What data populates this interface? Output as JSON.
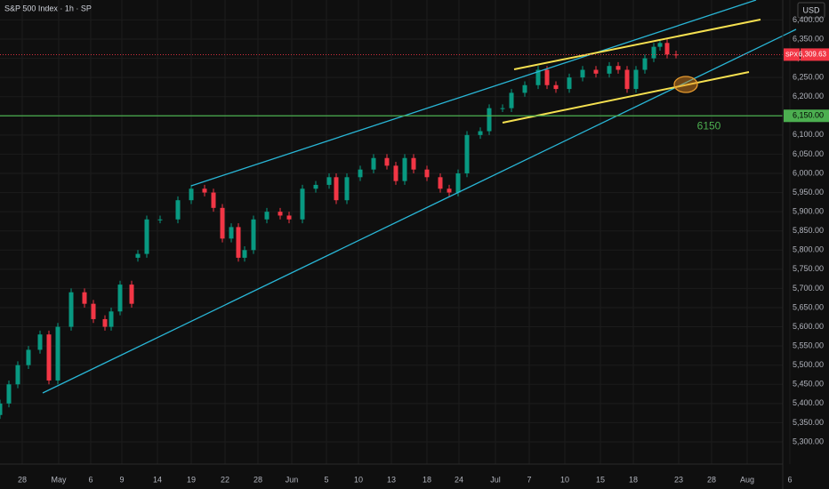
{
  "chart_data": {
    "type": "candlestick",
    "title": "S&P 500 Index · 1h · SP",
    "currency": "USD",
    "up_color": "#089981",
    "down_color": "#f23645",
    "x": [
      0,
      10,
      20,
      32,
      45,
      55,
      65,
      80,
      95,
      105,
      118,
      125,
      135,
      148,
      155,
      165,
      180,
      200,
      215,
      230,
      240,
      250,
      260,
      268,
      275,
      285,
      300,
      315,
      325,
      340,
      355,
      370,
      378,
      390,
      405,
      420,
      435,
      445,
      455,
      465,
      480,
      495,
      505,
      515,
      525,
      540,
      550,
      565,
      575,
      590,
      605,
      615,
      625,
      640,
      655,
      670,
      685,
      695,
      705,
      715,
      725,
      735,
      742,
      750,
      760
    ],
    "open": [
      5370,
      5400,
      5450,
      5500,
      5540,
      5580,
      5460,
      5600,
      5690,
      5660,
      5620,
      5600,
      5640,
      5710,
      5780,
      5790,
      5880,
      5880,
      5930,
      5960,
      5950,
      5910,
      5830,
      5860,
      5780,
      5800,
      5880,
      5900,
      5890,
      5880,
      5960,
      5970,
      5990,
      5930,
      5990,
      6010,
      6040,
      6020,
      5980,
      6040,
      6010,
      5990,
      5960,
      5950,
      6000,
      6100,
      6110,
      6170,
      6170,
      6210,
      6230,
      6270,
      6230,
      6220,
      6250,
      6270,
      6260,
      6280,
      6270,
      6220,
      6270,
      6300,
      6330,
      6340,
      6310
    ],
    "high": [
      5410,
      5460,
      5510,
      5550,
      5590,
      5590,
      5610,
      5700,
      5700,
      5670,
      5630,
      5650,
      5720,
      5720,
      5800,
      5890,
      5890,
      5940,
      5970,
      5970,
      5960,
      5920,
      5870,
      5870,
      5810,
      5890,
      5910,
      5910,
      5900,
      5970,
      5980,
      6000,
      6000,
      6000,
      6020,
      6050,
      6050,
      6030,
      6050,
      6050,
      6020,
      6000,
      5970,
      6010,
      6110,
      6120,
      6180,
      6180,
      6220,
      6240,
      6280,
      6280,
      6240,
      6260,
      6280,
      6280,
      6290,
      6290,
      6280,
      6280,
      6310,
      6340,
      6350,
      6350,
      6320
    ],
    "low": [
      5360,
      5390,
      5440,
      5490,
      5530,
      5450,
      5450,
      5590,
      5650,
      5610,
      5590,
      5590,
      5630,
      5650,
      5770,
      5780,
      5870,
      5870,
      5920,
      5940,
      5900,
      5820,
      5820,
      5770,
      5770,
      5790,
      5870,
      5880,
      5870,
      5870,
      5950,
      5960,
      5920,
      5920,
      5980,
      6000,
      6010,
      5970,
      5970,
      6000,
      5980,
      5950,
      5940,
      5940,
      5990,
      6090,
      6100,
      6160,
      6160,
      6200,
      6220,
      6220,
      6210,
      6210,
      6240,
      6250,
      6250,
      6260,
      6210,
      6210,
      6260,
      6290,
      6320,
      6300,
      6300
    ],
    "close": [
      5400,
      5450,
      5500,
      5540,
      5580,
      5460,
      5600,
      5690,
      5660,
      5620,
      5600,
      5640,
      5710,
      5660,
      5790,
      5880,
      5880,
      5930,
      5960,
      5950,
      5910,
      5830,
      5860,
      5780,
      5800,
      5880,
      5900,
      5890,
      5880,
      5960,
      5970,
      5990,
      5930,
      5990,
      6010,
      6040,
      6020,
      5980,
      6040,
      6010,
      5990,
      5960,
      5950,
      6000,
      6100,
      6110,
      6170,
      6170,
      6210,
      6230,
      6270,
      6230,
      6220,
      6250,
      6270,
      6260,
      6280,
      6270,
      6220,
      6270,
      6300,
      6330,
      6340,
      6310,
      6309.63
    ],
    "xlim": [
      0,
      880
    ],
    "xticks": [
      {
        "value": 25,
        "label": "28"
      },
      {
        "value": 66,
        "label": "May"
      },
      {
        "value": 102,
        "label": "6"
      },
      {
        "value": 137,
        "label": "9"
      },
      {
        "value": 177,
        "label": "14"
      },
      {
        "value": 215,
        "label": "19"
      },
      {
        "value": 253,
        "label": "22"
      },
      {
        "value": 290,
        "label": "28"
      },
      {
        "value": 328,
        "label": "Jun"
      },
      {
        "value": 367,
        "label": "5"
      },
      {
        "value": 403,
        "label": "10"
      },
      {
        "value": 440,
        "label": "13"
      },
      {
        "value": 480,
        "label": "18"
      },
      {
        "value": 516,
        "label": "24"
      },
      {
        "value": 557,
        "label": "Jul"
      },
      {
        "value": 595,
        "label": "7"
      },
      {
        "value": 635,
        "label": "10"
      },
      {
        "value": 675,
        "label": "15"
      },
      {
        "value": 712,
        "label": "18"
      },
      {
        "value": 763,
        "label": "23"
      },
      {
        "value": 800,
        "label": "28"
      },
      {
        "value": 840,
        "label": "Aug"
      },
      {
        "value": 888,
        "label": "6"
      }
    ],
    "ylim": [
      5242,
      6452
    ],
    "yticks": [
      {
        "value": 5300,
        "label": "5,300.00"
      },
      {
        "value": 5350,
        "label": "5,350.00"
      },
      {
        "value": 5400,
        "label": "5,400.00"
      },
      {
        "value": 5450,
        "label": "5,450.00"
      },
      {
        "value": 5500,
        "label": "5,500.00"
      },
      {
        "value": 5550,
        "label": "5,550.00"
      },
      {
        "value": 5600,
        "label": "5,600.00"
      },
      {
        "value": 5650,
        "label": "5,650.00"
      },
      {
        "value": 5700,
        "label": "5,700.00"
      },
      {
        "value": 5750,
        "label": "5,750.00"
      },
      {
        "value": 5800,
        "label": "5,800.00"
      },
      {
        "value": 5850,
        "label": "5,850.00"
      },
      {
        "value": 5900,
        "label": "5,900.00"
      },
      {
        "value": 5950,
        "label": "5,950.00"
      },
      {
        "value": 6000,
        "label": "6,000.00"
      },
      {
        "value": 6050,
        "label": "6,050.00"
      },
      {
        "value": 6100,
        "label": "6,100.00"
      },
      {
        "value": 6150,
        "label": "6,150.00"
      },
      {
        "value": 6200,
        "label": "6,200.00"
      },
      {
        "value": 6250,
        "label": "6,250.00"
      },
      {
        "value": 6300,
        "label": "6,300.00"
      },
      {
        "value": 6350,
        "label": "6,350.00"
      },
      {
        "value": 6400,
        "label": "6,400.00"
      }
    ],
    "grid": true,
    "level": {
      "value": 6150,
      "label": "6150",
      "axis_label": "6,150.00",
      "color": "#4caf50"
    },
    "last_price": {
      "symbol": "SPX",
      "value": 6309.63,
      "label": "6,309.63",
      "color": "#f23645"
    }
  }
}
